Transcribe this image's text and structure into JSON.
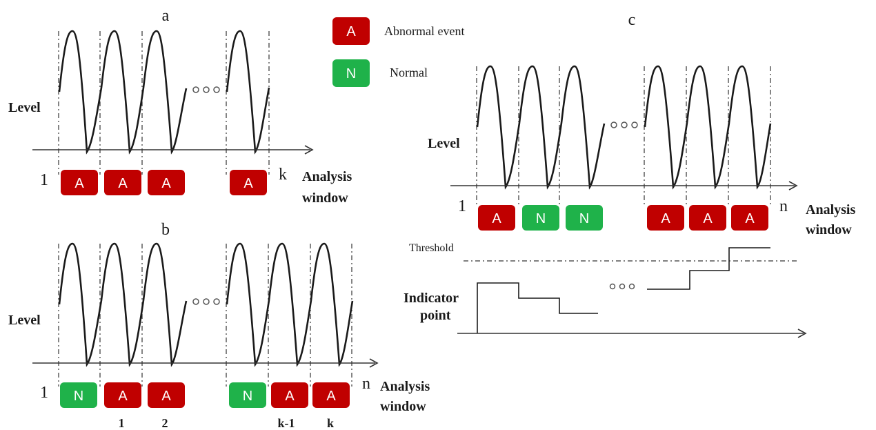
{
  "legend": {
    "abnormal": {
      "letter": "A",
      "label": "Abnormal event",
      "color": "#c00000"
    },
    "normal": {
      "letter": "N",
      "label": "Normal",
      "color": "#1fb24a"
    }
  },
  "panels": {
    "a": {
      "title": "a",
      "ylabel": "Level",
      "start_label": "1",
      "end_label": "k",
      "axis_label_line1": "Analysis",
      "axis_label_line2": "window",
      "boxes": [
        "A",
        "A",
        "A",
        "A"
      ]
    },
    "b": {
      "title": "b",
      "ylabel": "Level",
      "start_label": "1",
      "end_label": "n",
      "axis_label_line1": "Analysis",
      "axis_label_line2": "window",
      "boxes": [
        "N",
        "A",
        "A",
        "N",
        "A",
        "A"
      ],
      "sublabels": [
        "1",
        "2",
        "k-1",
        "k"
      ]
    },
    "c": {
      "title": "c",
      "ylabel": "Level",
      "start_label": "1",
      "end_label": "n",
      "axis_label_line1": "Analysis",
      "axis_label_line2": "window",
      "boxes": [
        "A",
        "N",
        "N",
        "A",
        "A",
        "A"
      ],
      "threshold_label": "Threshold",
      "indicator_line1": "Indicator",
      "indicator_line2": "point"
    }
  }
}
